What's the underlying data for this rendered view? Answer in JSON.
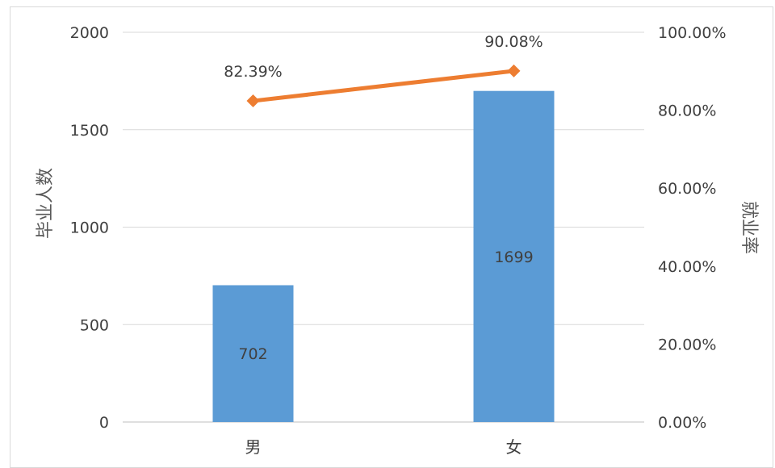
{
  "chart_data": {
    "type": "bar",
    "categories": [
      "男",
      "女"
    ],
    "series": [
      {
        "type": "bar",
        "axis": "left",
        "values": [
          702,
          1699
        ],
        "color": "#5b9bd5",
        "data_labels": [
          "702",
          "1699"
        ]
      },
      {
        "type": "line",
        "axis": "right",
        "values": [
          82.39,
          90.08
        ],
        "color": "#ed7d31",
        "marker": "diamond",
        "data_labels": [
          "82.39%",
          "90.08%"
        ]
      }
    ],
    "ylabel": "毕业人数",
    "ylim": [
      0,
      2000
    ],
    "yticks": [
      "0",
      "500",
      "1000",
      "1500",
      "2000"
    ],
    "y2label": "就业率",
    "y2lim": [
      0,
      100
    ],
    "y2ticks": [
      "0.00%",
      "20.00%",
      "40.00%",
      "60.00%",
      "80.00%",
      "100.00%"
    ],
    "grid": true,
    "legend": "none"
  }
}
